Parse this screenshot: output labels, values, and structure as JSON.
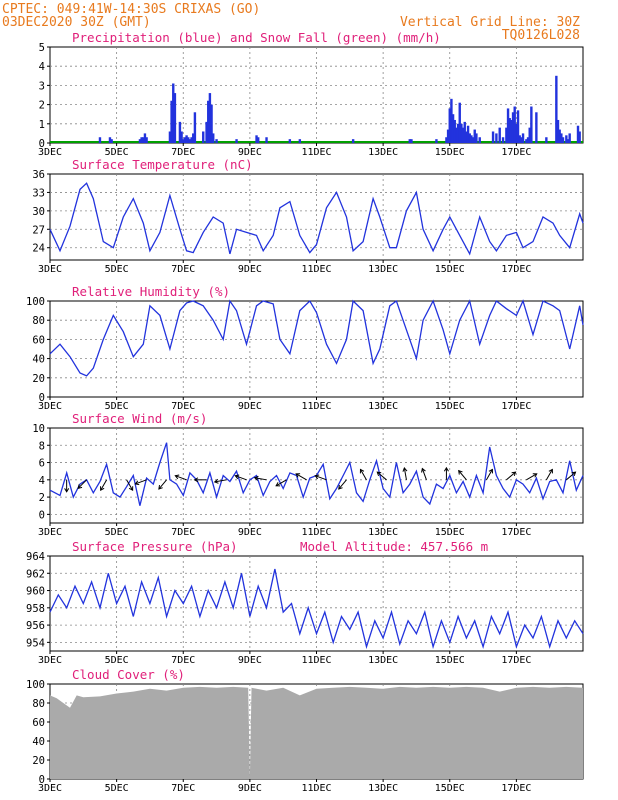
{
  "header": {
    "line1": "CPTEC:   049:41W-14:30S  CRIXAS (GO)",
    "line2_left": "03DEC2020 30Z (GMT)",
    "line2_right": "Vertical Grid Line: 30Z",
    "line3_right": "TQ0126L028"
  },
  "colors": {
    "header": "#e87a1e",
    "title": "#e0207a",
    "line": "#2233dd",
    "snow": "#00a000",
    "cloud": "#aaaaaa",
    "arrow": "#000000"
  },
  "chart_data": [
    {
      "type": "bar",
      "id": "precip",
      "title": "Precipitation (blue) and Snow Fall (green) (mm/h)",
      "ylim": [
        0,
        5
      ],
      "yticks": [
        0,
        1,
        2,
        3,
        4,
        5
      ],
      "xlim": [
        0,
        16
      ],
      "x_unit": "days since 03DEC2020 30Z",
      "xtick_labels": [
        "3DEC",
        "5DEC",
        "7DEC",
        "9DEC",
        "11DEC",
        "13DEC",
        "15DEC",
        "17DEC"
      ],
      "snow_values": 0,
      "x": [
        1.5,
        1.8,
        1.85,
        2.7,
        2.75,
        2.8,
        2.85,
        2.9,
        3.6,
        3.65,
        3.7,
        3.75,
        3.9,
        3.95,
        4.0,
        4.05,
        4.1,
        4.15,
        4.2,
        4.25,
        4.3,
        4.35,
        4.6,
        4.7,
        4.75,
        4.8,
        4.85,
        4.9,
        5.0,
        5.6,
        6.2,
        6.25,
        6.5,
        7.2,
        7.5,
        9.1,
        10.8,
        10.85,
        11.6,
        11.9,
        11.95,
        12.0,
        12.05,
        12.1,
        12.15,
        12.2,
        12.25,
        12.3,
        12.35,
        12.4,
        12.45,
        12.5,
        12.55,
        12.6,
        12.65,
        12.7,
        12.75,
        12.8,
        12.9,
        13.3,
        13.4,
        13.5,
        13.6,
        13.7,
        13.75,
        13.8,
        13.85,
        13.9,
        13.95,
        14.0,
        14.05,
        14.1,
        14.15,
        14.2,
        14.3,
        14.35,
        14.4,
        14.45,
        14.6,
        14.9,
        15.2,
        15.25,
        15.3,
        15.35,
        15.4,
        15.5,
        15.55,
        15.6,
        15.85,
        15.9
      ],
      "values": [
        0.3,
        0.3,
        0.2,
        0.2,
        0.3,
        0.3,
        0.5,
        0.3,
        0.6,
        2.2,
        3.1,
        2.6,
        1.1,
        0.6,
        0.2,
        0.3,
        0.4,
        0.3,
        0.2,
        0.3,
        0.5,
        1.6,
        0.6,
        1.1,
        2.2,
        2.6,
        2.0,
        0.5,
        0.2,
        0.2,
        0.4,
        0.3,
        0.3,
        0.2,
        0.2,
        0.2,
        0.2,
        0.2,
        0.2,
        0.3,
        0.7,
        1.8,
        2.3,
        1.5,
        1.2,
        0.8,
        1.0,
        2.1,
        1.0,
        0.8,
        1.1,
        0.6,
        0.9,
        0.5,
        0.4,
        0.3,
        0.7,
        0.5,
        0.3,
        0.6,
        0.5,
        0.8,
        0.3,
        0.8,
        1.8,
        1.3,
        1.2,
        1.6,
        1.9,
        1.0,
        1.7,
        0.4,
        0.3,
        0.5,
        0.2,
        0.3,
        0.8,
        1.9,
        1.6,
        0.3,
        3.5,
        1.2,
        0.7,
        0.5,
        0.3,
        0.4,
        0.2,
        0.5,
        0.9,
        0.6
      ]
    },
    {
      "type": "line",
      "id": "temp",
      "title": "Surface Temperature (nC)",
      "ylim": [
        22,
        36
      ],
      "yticks": [
        24,
        27,
        30,
        33,
        36
      ],
      "xlim": [
        0,
        16
      ],
      "xtick_labels": [
        "3DEC",
        "5DEC",
        "7DEC",
        "9DEC",
        "11DEC",
        "13DEC",
        "15DEC",
        "17DEC"
      ],
      "x": [
        0,
        0.3,
        0.6,
        0.9,
        1.1,
        1.3,
        1.6,
        1.9,
        2.2,
        2.5,
        2.8,
        3.0,
        3.3,
        3.6,
        3.9,
        4.1,
        4.3,
        4.6,
        4.9,
        5.2,
        5.4,
        5.6,
        5.9,
        6.2,
        6.4,
        6.7,
        6.9,
        7.2,
        7.5,
        7.8,
        8.0,
        8.3,
        8.6,
        8.9,
        9.1,
        9.4,
        9.7,
        9.9,
        10.2,
        10.4,
        10.7,
        11.0,
        11.2,
        11.5,
        11.8,
        12.0,
        12.3,
        12.6,
        12.9,
        13.2,
        13.4,
        13.7,
        14.0,
        14.2,
        14.5,
        14.8,
        15.1,
        15.3,
        15.6,
        15.9,
        16.0
      ],
      "values": [
        27.0,
        23.5,
        27.5,
        33.5,
        34.5,
        32.0,
        25.0,
        24.0,
        29.0,
        32.0,
        28.0,
        23.5,
        26.5,
        32.5,
        27.0,
        23.5,
        23.2,
        26.5,
        29.0,
        28.0,
        23.0,
        27.0,
        26.5,
        26.0,
        23.5,
        26.0,
        30.5,
        31.5,
        26.0,
        23.2,
        24.5,
        30.5,
        33.0,
        29.0,
        23.5,
        25.0,
        32.0,
        29.0,
        24.0,
        24.0,
        30.0,
        33.0,
        27.0,
        23.5,
        27.0,
        29.0,
        26.0,
        23.0,
        29.0,
        25.0,
        23.5,
        26.0,
        26.5,
        24.0,
        25.0,
        29.0,
        28.0,
        26.0,
        24.0,
        29.5,
        28.0
      ]
    },
    {
      "type": "line",
      "id": "rh",
      "title": "Relative Humidity (%)",
      "ylim": [
        0,
        100
      ],
      "yticks": [
        0,
        20,
        40,
        60,
        80,
        100
      ],
      "xlim": [
        0,
        16
      ],
      "xtick_labels": [
        "3DEC",
        "5DEC",
        "7DEC",
        "9DEC",
        "11DEC",
        "13DEC",
        "15DEC",
        "17DEC"
      ],
      "x": [
        0,
        0.3,
        0.6,
        0.9,
        1.1,
        1.3,
        1.6,
        1.9,
        2.2,
        2.5,
        2.8,
        3.0,
        3.3,
        3.6,
        3.9,
        4.1,
        4.3,
        4.6,
        4.9,
        5.2,
        5.4,
        5.6,
        5.9,
        6.2,
        6.4,
        6.7,
        6.9,
        7.2,
        7.5,
        7.8,
        8.0,
        8.3,
        8.6,
        8.9,
        9.1,
        9.4,
        9.7,
        9.9,
        10.2,
        10.4,
        10.7,
        11.0,
        11.2,
        11.5,
        11.8,
        12.0,
        12.3,
        12.6,
        12.9,
        13.2,
        13.4,
        13.7,
        14.0,
        14.2,
        14.5,
        14.8,
        15.1,
        15.3,
        15.6,
        15.9,
        16.0
      ],
      "values": [
        45,
        55,
        42,
        25,
        22,
        30,
        60,
        85,
        68,
        42,
        55,
        95,
        85,
        50,
        90,
        98,
        100,
        95,
        80,
        60,
        100,
        90,
        55,
        95,
        100,
        97,
        60,
        45,
        90,
        100,
        88,
        55,
        35,
        60,
        100,
        90,
        35,
        50,
        95,
        100,
        70,
        40,
        80,
        100,
        70,
        45,
        80,
        100,
        55,
        85,
        100,
        92,
        85,
        100,
        65,
        100,
        95,
        90,
        50,
        95,
        75
      ]
    },
    {
      "type": "line",
      "id": "wind",
      "title": "Surface Wind (m/s)",
      "ylim": [
        -1,
        10
      ],
      "yticks": [
        0,
        2,
        4,
        6,
        8,
        10
      ],
      "xlim": [
        0,
        16
      ],
      "xtick_labels": [
        "3DEC",
        "5DEC",
        "7DEC",
        "9DEC",
        "11DEC",
        "13DEC",
        "15DEC",
        "17DEC"
      ],
      "x": [
        0,
        0.3,
        0.5,
        0.7,
        0.9,
        1.1,
        1.3,
        1.5,
        1.7,
        1.9,
        2.1,
        2.3,
        2.5,
        2.7,
        2.9,
        3.1,
        3.3,
        3.5,
        3.6,
        3.8,
        4.0,
        4.2,
        4.4,
        4.6,
        4.8,
        5.0,
        5.2,
        5.4,
        5.6,
        5.8,
        6.0,
        6.2,
        6.4,
        6.6,
        6.8,
        7.0,
        7.2,
        7.4,
        7.6,
        7.8,
        8.0,
        8.2,
        8.4,
        8.6,
        8.8,
        9.0,
        9.2,
        9.4,
        9.6,
        9.8,
        10.0,
        10.2,
        10.4,
        10.6,
        10.8,
        11.0,
        11.2,
        11.4,
        11.6,
        11.8,
        12.0,
        12.2,
        12.4,
        12.6,
        12.8,
        13.0,
        13.2,
        13.4,
        13.6,
        13.8,
        14.0,
        14.2,
        14.4,
        14.6,
        14.8,
        15.0,
        15.2,
        15.4,
        15.6,
        15.8,
        16.0
      ],
      "values": [
        2.8,
        2.2,
        4.8,
        2.0,
        3.5,
        4.0,
        2.5,
        3.8,
        5.8,
        2.5,
        2.0,
        3.2,
        4.5,
        1.0,
        4.2,
        3.5,
        6.0,
        8.3,
        4.0,
        3.5,
        2.2,
        4.8,
        4.0,
        2.5,
        4.8,
        2.0,
        4.5,
        3.8,
        5.0,
        2.5,
        4.0,
        4.5,
        2.2,
        3.8,
        4.5,
        3.0,
        4.8,
        4.5,
        2.0,
        4.2,
        4.5,
        5.8,
        1.8,
        3.0,
        4.5,
        6.0,
        2.5,
        1.5,
        4.0,
        6.2,
        3.0,
        2.0,
        6.0,
        2.5,
        3.5,
        5.0,
        2.0,
        1.2,
        3.5,
        3.0,
        4.5,
        2.5,
        3.8,
        2.0,
        4.5,
        2.5,
        7.8,
        4.5,
        3.0,
        2.0,
        4.0,
        3.5,
        2.5,
        4.2,
        1.8,
        3.8,
        4.0,
        2.5,
        6.2,
        2.8,
        4.5
      ],
      "arrows_x": [
        0.5,
        1.1,
        1.7,
        2.3,
        2.9,
        3.5,
        4.1,
        4.7,
        5.3,
        5.9,
        6.5,
        7.1,
        7.7,
        8.3,
        8.9,
        9.5,
        10.1,
        10.7,
        11.3,
        11.9,
        12.5,
        13.1,
        13.7,
        14.3,
        14.9,
        15.5
      ],
      "arrows_dir_deg": [
        90,
        135,
        120,
        60,
        160,
        130,
        200,
        180,
        170,
        200,
        190,
        150,
        210,
        200,
        130,
        240,
        220,
        260,
        250,
        270,
        230,
        300,
        320,
        330,
        300,
        320
      ]
    },
    {
      "type": "line",
      "id": "press",
      "title": "Surface Pressure (hPa)",
      "subtitle": "Model Altitude: 457.566  m",
      "ylim": [
        953,
        964
      ],
      "yticks": [
        954,
        956,
        958,
        960,
        962,
        964
      ],
      "xlim": [
        0,
        16
      ],
      "xtick_labels": [
        "3DEC",
        "5DEC",
        "7DEC",
        "9DEC",
        "11DEC",
        "13DEC",
        "15DEC",
        "17DEC"
      ],
      "x": [
        0,
        0.25,
        0.5,
        0.75,
        1.0,
        1.25,
        1.5,
        1.75,
        2.0,
        2.25,
        2.5,
        2.75,
        3.0,
        3.25,
        3.5,
        3.75,
        4.0,
        4.25,
        4.5,
        4.75,
        5.0,
        5.25,
        5.5,
        5.75,
        6.0,
        6.25,
        6.5,
        6.75,
        7.0,
        7.25,
        7.5,
        7.75,
        8.0,
        8.25,
        8.5,
        8.75,
        9.0,
        9.25,
        9.5,
        9.75,
        10.0,
        10.25,
        10.5,
        10.75,
        11.0,
        11.25,
        11.5,
        11.75,
        12.0,
        12.25,
        12.5,
        12.75,
        13.0,
        13.25,
        13.5,
        13.75,
        14.0,
        14.25,
        14.5,
        14.75,
        15.0,
        15.25,
        15.5,
        15.75,
        16.0
      ],
      "values": [
        957.5,
        959.5,
        958.0,
        960.5,
        958.5,
        961.0,
        958.0,
        962.0,
        958.5,
        960.5,
        957.0,
        961.0,
        958.5,
        961.5,
        957.0,
        960.0,
        958.5,
        960.5,
        957.0,
        960.0,
        958.0,
        961.0,
        958.0,
        962.0,
        957.0,
        960.5,
        958.0,
        962.5,
        957.5,
        958.5,
        955.0,
        958.0,
        955.0,
        957.5,
        954.0,
        957.0,
        955.5,
        957.5,
        953.5,
        956.5,
        954.5,
        957.5,
        953.8,
        956.5,
        955.0,
        957.5,
        953.5,
        956.5,
        954.0,
        957.0,
        954.5,
        956.5,
        953.5,
        957.0,
        955.0,
        957.5,
        953.5,
        956.0,
        954.5,
        957.0,
        953.5,
        956.5,
        954.5,
        956.5,
        955.0
      ]
    },
    {
      "type": "area",
      "id": "cloud",
      "title": "Cloud Cover (%)",
      "ylim": [
        0,
        100
      ],
      "yticks": [
        0,
        20,
        40,
        60,
        80,
        100
      ],
      "xlim": [
        0,
        16
      ],
      "xtick_labels": [
        "3DEC",
        "5DEC",
        "7DEC",
        "9DEC",
        "11DEC",
        "13DEC",
        "15DEC",
        "17DEC"
      ],
      "x": [
        0,
        0.2,
        0.4,
        0.6,
        0.8,
        1.0,
        1.5,
        2.0,
        2.5,
        3.0,
        3.5,
        4.0,
        4.5,
        5.0,
        5.5,
        5.95,
        6.0,
        6.05,
        6.5,
        7.0,
        7.5,
        8.0,
        8.5,
        9.0,
        9.5,
        10.0,
        10.5,
        11.0,
        11.5,
        12.0,
        12.5,
        13.0,
        13.5,
        14.0,
        14.5,
        15.0,
        15.5,
        16.0
      ],
      "values": [
        88,
        85,
        80,
        75,
        88,
        86,
        87,
        90,
        92,
        95,
        93,
        96,
        97,
        96,
        97,
        96,
        2,
        96,
        93,
        96,
        88,
        95,
        96,
        97,
        96,
        95,
        97,
        96,
        97,
        96,
        97,
        96,
        92,
        96,
        97,
        96,
        97,
        96
      ]
    }
  ]
}
